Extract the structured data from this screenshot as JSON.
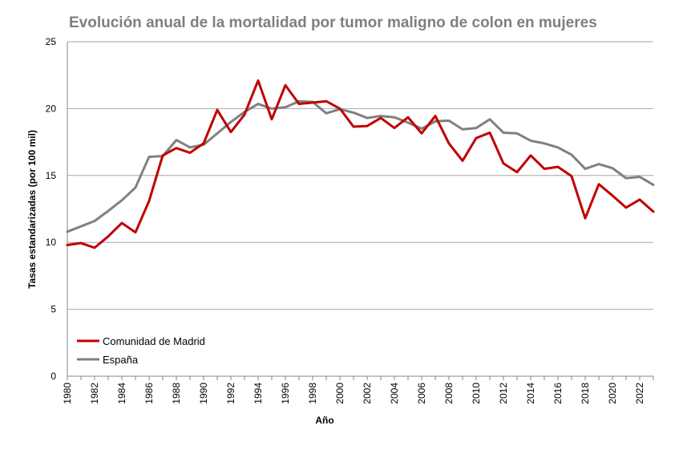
{
  "chart_data": {
    "type": "line",
    "title": "Evolución anual de la mortalidad por tumor maligno de colon en mujeres",
    "xlabel": "Año",
    "ylabel": "Tasas estandarizadas (por 100 mil)",
    "xlim": [
      1980,
      2023
    ],
    "ylim": [
      0,
      25
    ],
    "yticks": [
      0,
      5,
      10,
      15,
      20,
      25
    ],
    "xticks": [
      1980,
      1982,
      1984,
      1986,
      1988,
      1990,
      1992,
      1994,
      1996,
      1998,
      2000,
      2002,
      2004,
      2006,
      2008,
      2010,
      2012,
      2014,
      2016,
      2018,
      2020,
      2022
    ],
    "grid": "horizontal",
    "legend_position": "bottom-left",
    "x": [
      1980,
      1981,
      1982,
      1983,
      1984,
      1985,
      1986,
      1987,
      1988,
      1989,
      1990,
      1991,
      1992,
      1993,
      1994,
      1995,
      1996,
      1997,
      1998,
      1999,
      2000,
      2001,
      2002,
      2003,
      2004,
      2005,
      2006,
      2007,
      2008,
      2009,
      2010,
      2011,
      2012,
      2013,
      2014,
      2015,
      2016,
      2017,
      2018,
      2019,
      2020,
      2021,
      2022,
      2023
    ],
    "series": [
      {
        "name": "Comunidad de Madrid",
        "color": "#c00000",
        "values": [
          9.8,
          9.95,
          9.6,
          10.45,
          11.45,
          10.75,
          13.1,
          16.5,
          17.05,
          16.7,
          17.4,
          19.9,
          18.25,
          19.55,
          22.1,
          19.2,
          21.75,
          20.35,
          20.45,
          20.55,
          20.0,
          18.65,
          18.7,
          19.3,
          18.55,
          19.35,
          18.15,
          19.45,
          17.4,
          16.1,
          17.8,
          18.2,
          15.9,
          15.25,
          16.5,
          15.5,
          15.65,
          14.95,
          11.8,
          14.35,
          13.5,
          12.6,
          13.2,
          12.3
        ]
      },
      {
        "name": "España",
        "color": "#808080",
        "values": [
          10.8,
          11.2,
          11.6,
          12.35,
          13.15,
          14.1,
          16.4,
          16.45,
          17.65,
          17.1,
          17.3,
          18.15,
          19.0,
          19.75,
          20.35,
          20.0,
          20.1,
          20.55,
          20.5,
          19.65,
          19.95,
          19.7,
          19.3,
          19.45,
          19.35,
          18.95,
          18.5,
          19.05,
          19.1,
          18.45,
          18.55,
          19.2,
          18.2,
          18.15,
          17.6,
          17.4,
          17.1,
          16.55,
          15.5,
          15.85,
          15.55,
          14.8,
          14.9,
          14.3
        ]
      }
    ]
  }
}
